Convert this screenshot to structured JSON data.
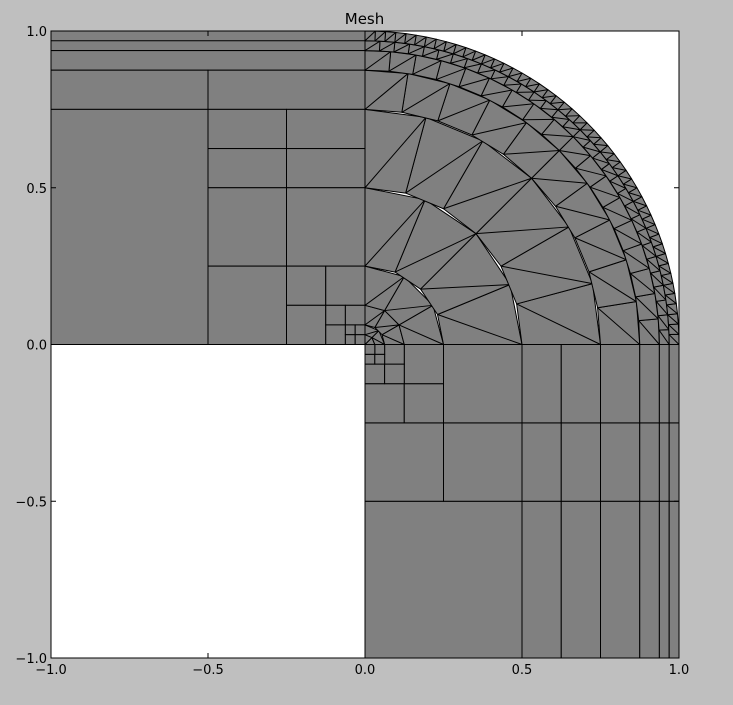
{
  "chart_data": {
    "type": "mesh",
    "title": "Mesh",
    "xlabel": "",
    "ylabel": "",
    "xlim": [
      -1.0,
      1.0
    ],
    "ylim": [
      -1.0,
      1.0
    ],
    "xticks": [
      {
        "value": -1.0,
        "label": "−1.0"
      },
      {
        "value": -0.5,
        "label": "−0.5"
      },
      {
        "value": 0.0,
        "label": "0.0"
      },
      {
        "value": 0.5,
        "label": "0.5"
      },
      {
        "value": 1.0,
        "label": "1.0"
      }
    ],
    "yticks": [
      {
        "value": -1.0,
        "label": "−1.0"
      },
      {
        "value": -0.5,
        "label": "−0.5"
      },
      {
        "value": 0.0,
        "label": "0.0"
      },
      {
        "value": 0.5,
        "label": "0.5"
      },
      {
        "value": 1.0,
        "label": "1.0"
      }
    ],
    "colors": {
      "figure_background": "#bfbfbf",
      "axes_background": "#ffffff",
      "cell_fill": "#808080",
      "edge": "#000000"
    },
    "grid": false,
    "quadrants": {
      "upper_left_quads": [
        [
          -1,
          0.9375,
          0,
          1
        ],
        [
          -1,
          0.875,
          0,
          0.9375
        ],
        [
          -1,
          0.75,
          -0.5,
          0.875
        ],
        [
          -0.5,
          0.75,
          0,
          0.875
        ],
        [
          -1,
          0,
          -0.5,
          0.75
        ],
        [
          -0.5,
          0.625,
          -0.25,
          0.75
        ],
        [
          -0.25,
          0.625,
          0,
          0.75
        ],
        [
          -0.5,
          0.5,
          -0.25,
          0.625
        ],
        [
          -0.25,
          0.5,
          0,
          0.625
        ],
        [
          -0.5,
          0.25,
          -0.25,
          0.5
        ],
        [
          -0.25,
          0.25,
          0,
          0.5
        ],
        [
          -0.5,
          0,
          -0.25,
          0.25
        ],
        [
          -0.25,
          0.125,
          -0.125,
          0.25
        ],
        [
          -0.125,
          0.125,
          0,
          0.25
        ],
        [
          -0.25,
          0,
          -0.125,
          0.125
        ],
        [
          -0.125,
          0.0625,
          -0.0625,
          0.125
        ],
        [
          -0.0625,
          0.0625,
          0,
          0.125
        ],
        [
          -0.125,
          0,
          -0.0625,
          0.0625
        ],
        [
          -0.0625,
          0.03125,
          -0.03125,
          0.0625
        ],
        [
          -0.03125,
          0.03125,
          0,
          0.0625
        ],
        [
          -0.0625,
          0,
          -0.03125,
          0.03125
        ],
        [
          -0.03125,
          0,
          0,
          0.03125
        ]
      ],
      "upper_left_hlines": [
        0.96875
      ],
      "lower_right_quads": [
        [
          0,
          -1,
          0.5,
          -0.5
        ],
        [
          0.5,
          -1,
          0.625,
          -0.5
        ],
        [
          0.625,
          -1,
          0.75,
          -0.5
        ],
        [
          0.75,
          -1,
          0.875,
          -0.5
        ],
        [
          0.875,
          -1,
          0.9375,
          -0.5
        ],
        [
          0.9375,
          -1,
          0.96875,
          -0.5
        ],
        [
          0.96875,
          -1,
          1,
          -0.5
        ],
        [
          0,
          -0.5,
          0.25,
          -0.25
        ],
        [
          0.25,
          -0.5,
          0.5,
          -0.25
        ],
        [
          0.5,
          -0.5,
          0.625,
          -0.25
        ],
        [
          0.625,
          -0.5,
          0.75,
          -0.25
        ],
        [
          0.75,
          -0.5,
          0.875,
          -0.25
        ],
        [
          0.875,
          -0.5,
          0.9375,
          -0.25
        ],
        [
          0.9375,
          -0.5,
          0.96875,
          -0.25
        ],
        [
          0.96875,
          -0.5,
          1,
          -0.25
        ],
        [
          0,
          -0.25,
          0.125,
          -0.125
        ],
        [
          0.125,
          -0.25,
          0.25,
          -0.125
        ],
        [
          0.25,
          -0.25,
          0.5,
          0
        ],
        [
          0.5,
          -0.25,
          0.625,
          0
        ],
        [
          0.625,
          -0.25,
          0.75,
          0
        ],
        [
          0.75,
          -0.25,
          0.875,
          0
        ],
        [
          0.875,
          -0.25,
          0.9375,
          0
        ],
        [
          0.9375,
          -0.25,
          0.96875,
          0
        ],
        [
          0.96875,
          -0.25,
          1,
          0
        ],
        [
          0.125,
          -0.125,
          0.25,
          0
        ],
        [
          0,
          -0.125,
          0.0625,
          -0.0625
        ],
        [
          0.0625,
          -0.125,
          0.125,
          -0.0625
        ],
        [
          0.0625,
          -0.0625,
          0.125,
          0
        ],
        [
          0,
          -0.0625,
          0.03125,
          -0.03125
        ],
        [
          0.03125,
          -0.0625,
          0.0625,
          -0.03125
        ],
        [
          0.03125,
          -0.03125,
          0.0625,
          0
        ],
        [
          0,
          -0.03125,
          0.03125,
          0
        ]
      ],
      "quarter_disk": {
        "rings": [
          0,
          0.03125,
          0.0625,
          0.125,
          0.25,
          0.5,
          0.75,
          0.875,
          0.9375,
          0.96875,
          1.0
        ],
        "sectors_per_ring": [
          2,
          2,
          3,
          3,
          4,
          6,
          10,
          18,
          32,
          48
        ],
        "diagonals": true
      }
    }
  }
}
